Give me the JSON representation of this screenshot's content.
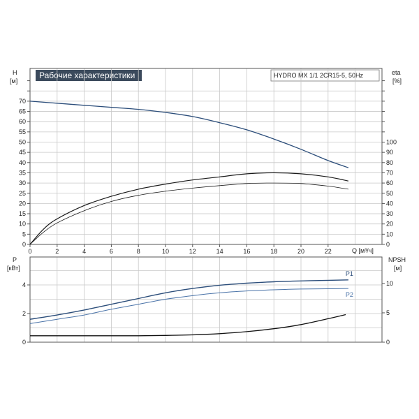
{
  "colors": {
    "head": "#2b4d7a",
    "eta": "#1a1a1a",
    "p1": "#2b4d7a",
    "p2": "#4a73a8",
    "npsh": "#111111"
  },
  "chart_data": [
    {
      "type": "line",
      "title": "Рабочие характеристики",
      "subtitle": "HYDRO MX 1/1 2CR15-5, 50Hz",
      "xlabel": "Q [м³/ч]",
      "ylabel_left": "H",
      "ylabel_left_unit": "[м]",
      "ylabel_right": "eta",
      "ylabel_right_unit": "[%]",
      "xlim": [
        0,
        24
      ],
      "ylim_left": [
        0,
        80
      ],
      "ylim_right": [
        0,
        160
      ],
      "grid": true,
      "x_ticks": [
        "0",
        "2",
        "4",
        "6",
        "8",
        "10",
        "12",
        "14",
        "16",
        "18",
        "20",
        "22"
      ],
      "y_ticks_left": [
        "0",
        "5",
        "10",
        "15",
        "20",
        "25",
        "30",
        "35",
        "40",
        "45",
        "50",
        "55",
        "60",
        "65",
        "70"
      ],
      "y_ticks_right": [
        "0",
        "10",
        "20",
        "30",
        "40",
        "50",
        "60",
        "70",
        "80",
        "90",
        "100"
      ],
      "series": [
        {
          "axis": "left",
          "x": [
            0,
            2,
            4,
            6,
            8,
            10,
            12,
            14,
            16,
            18,
            20,
            22,
            23.5
          ],
          "values": [
            70,
            69,
            68,
            67,
            66,
            64.5,
            62.5,
            59.5,
            56,
            51.5,
            46.5,
            41,
            37.5
          ]
        },
        {
          "axis": "right",
          "x": [
            0,
            1,
            2,
            4,
            6,
            8,
            10,
            12,
            14,
            16,
            18,
            20,
            22,
            23.5
          ],
          "values": [
            0,
            15,
            25,
            38,
            47,
            54,
            59,
            63,
            66,
            69,
            70,
            69,
            66,
            62
          ]
        },
        {
          "axis": "right",
          "x": [
            0,
            1,
            2,
            4,
            6,
            8,
            10,
            12,
            14,
            16,
            18,
            20,
            22,
            23.5
          ],
          "values": [
            0,
            12,
            21,
            33,
            42,
            48,
            52,
            55,
            57.5,
            59.5,
            60,
            59.5,
            57,
            54
          ]
        }
      ]
    },
    {
      "type": "line",
      "ylabel_left": "P",
      "ylabel_left_unit": "[кВт]",
      "ylabel_right": "NPSH",
      "ylabel_right_unit": "[м]",
      "xlim": [
        0,
        24
      ],
      "ylim_left": [
        0,
        5
      ],
      "ylim_right": [
        0,
        15
      ],
      "grid": true,
      "y_ticks_left": [
        "0",
        "2",
        "4"
      ],
      "y_ticks_right": [
        "0",
        "5",
        "10"
      ],
      "series": [
        {
          "name": "P1",
          "axis": "left",
          "x": [
            0,
            2,
            4,
            6,
            8,
            10,
            12,
            14,
            16,
            18,
            20,
            22,
            23.5
          ],
          "values": [
            1.6,
            1.9,
            2.25,
            2.65,
            3.05,
            3.45,
            3.75,
            3.98,
            4.12,
            4.22,
            4.28,
            4.32,
            4.35
          ]
        },
        {
          "name": "P2",
          "axis": "left",
          "x": [
            0,
            2,
            4,
            6,
            8,
            10,
            12,
            14,
            16,
            18,
            20,
            22,
            23.5
          ],
          "values": [
            1.3,
            1.6,
            1.9,
            2.3,
            2.65,
            3.0,
            3.25,
            3.45,
            3.58,
            3.66,
            3.71,
            3.73,
            3.75
          ]
        },
        {
          "axis": "right",
          "x": [
            0,
            2,
            4,
            6,
            8,
            10,
            12,
            14,
            16,
            18,
            20,
            22,
            23.3
          ],
          "values": [
            1.1,
            1.1,
            1.1,
            1.1,
            1.1,
            1.15,
            1.25,
            1.45,
            1.8,
            2.3,
            3.0,
            4.0,
            4.7
          ]
        }
      ]
    }
  ]
}
